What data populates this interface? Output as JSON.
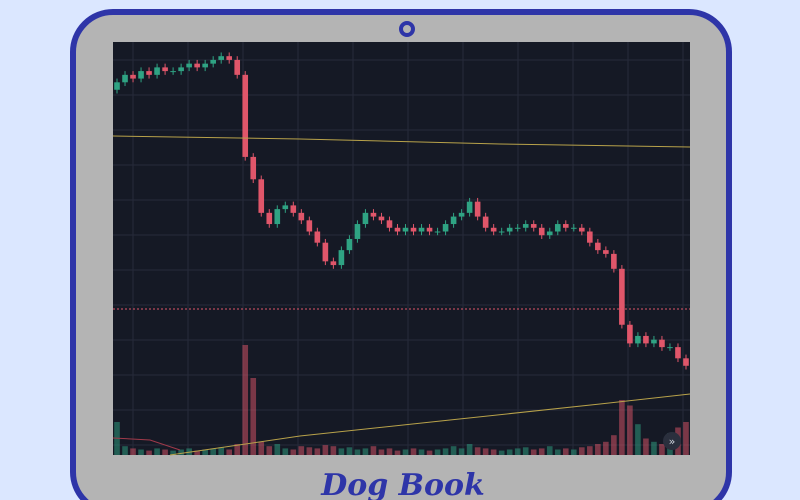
{
  "brand": "Dog Book",
  "chart_data": {
    "type": "candlestick",
    "up_color": "#2fa383",
    "down_color": "#e0566a",
    "ylim": [
      0,
      100
    ],
    "volume_ylim": [
      0,
      100
    ],
    "open": [
      88,
      90,
      92,
      91,
      93,
      92,
      94,
      93,
      93,
      94,
      95,
      94,
      95,
      96,
      97,
      96,
      92,
      70,
      64,
      55,
      52,
      56,
      57,
      55,
      53,
      50,
      47,
      42,
      41,
      45,
      48,
      52,
      55,
      54,
      53,
      51,
      50,
      51,
      50,
      51,
      50,
      50,
      52,
      54,
      55,
      58,
      54,
      51,
      50,
      50,
      51,
      51,
      52,
      51,
      49,
      50,
      52,
      51,
      51,
      50,
      47,
      45,
      44,
      40,
      25,
      20,
      22,
      20,
      21,
      19,
      19,
      16
    ],
    "high": [
      91,
      93,
      93,
      94,
      94,
      95,
      95,
      94,
      95,
      96,
      96,
      96,
      97,
      98,
      98,
      97,
      93,
      71,
      65,
      56,
      57,
      58,
      58,
      56,
      54,
      51,
      48,
      43,
      46,
      49,
      53,
      56,
      56,
      55,
      54,
      52,
      52,
      52,
      52,
      52,
      51,
      53,
      55,
      56,
      59,
      59,
      55,
      52,
      51,
      52,
      52,
      53,
      53,
      52,
      51,
      53,
      53,
      52,
      52,
      51,
      48,
      46,
      45,
      41,
      26,
      23,
      23,
      22,
      22,
      20,
      20,
      17
    ],
    "low": [
      87,
      89,
      90,
      90,
      91,
      91,
      92,
      92,
      92,
      93,
      93,
      93,
      94,
      95,
      95,
      91,
      69,
      63,
      54,
      51,
      51,
      55,
      54,
      52,
      49,
      46,
      41,
      40,
      40,
      44,
      47,
      51,
      53,
      52,
      50,
      49,
      49,
      49,
      49,
      49,
      49,
      49,
      51,
      53,
      54,
      53,
      50,
      49,
      49,
      49,
      50,
      50,
      50,
      48,
      48,
      49,
      50,
      50,
      49,
      46,
      44,
      43,
      39,
      24,
      19,
      19,
      19,
      19,
      18,
      18,
      15,
      13
    ],
    "close": [
      90,
      92,
      91,
      93,
      92,
      94,
      93,
      93,
      94,
      95,
      94,
      95,
      96,
      97,
      96,
      92,
      70,
      64,
      55,
      52,
      56,
      57,
      55,
      53,
      50,
      47,
      42,
      41,
      45,
      48,
      52,
      55,
      54,
      53,
      51,
      50,
      51,
      50,
      51,
      50,
      50,
      52,
      54,
      55,
      58,
      54,
      51,
      50,
      50,
      51,
      51,
      52,
      51,
      49,
      50,
      52,
      51,
      51,
      50,
      47,
      45,
      44,
      40,
      25,
      20,
      22,
      20,
      21,
      19,
      19,
      16,
      14
    ],
    "volume": [
      30,
      8,
      6,
      5,
      4,
      6,
      5,
      4,
      5,
      6,
      4,
      5,
      6,
      7,
      5,
      10,
      100,
      70,
      12,
      8,
      10,
      6,
      5,
      8,
      7,
      6,
      9,
      8,
      6,
      7,
      5,
      6,
      8,
      5,
      6,
      4,
      5,
      6,
      5,
      4,
      5,
      6,
      8,
      6,
      10,
      7,
      6,
      5,
      4,
      5,
      6,
      7,
      5,
      6,
      8,
      5,
      6,
      5,
      7,
      8,
      10,
      12,
      18,
      50,
      45,
      28,
      15,
      12,
      10,
      20,
      25,
      30
    ]
  }
}
